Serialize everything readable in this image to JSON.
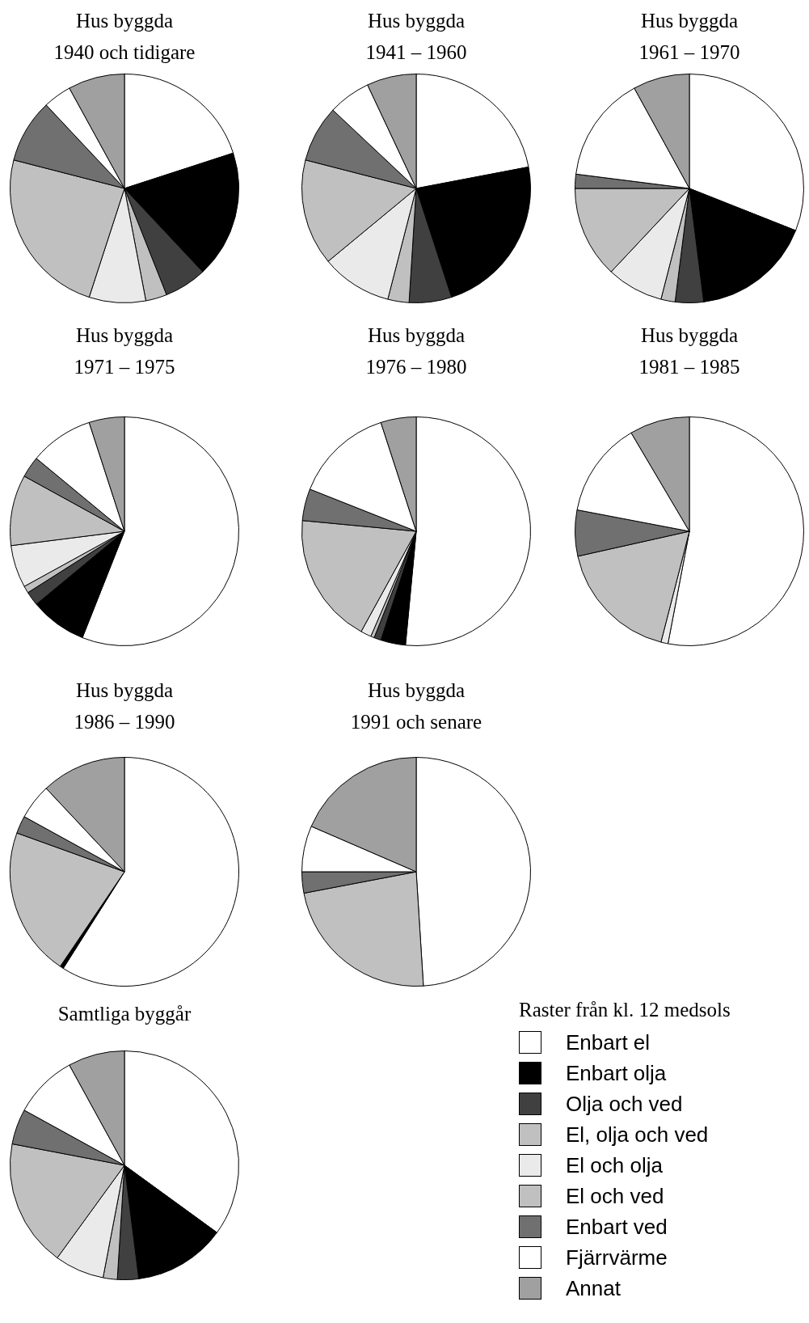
{
  "chart_data": [
    {
      "type": "pie",
      "title": "Hus byggda",
      "subtitle": "1940 och tidigare",
      "categories": [
        null,
        null,
        null,
        null,
        null,
        null,
        null,
        null,
        null
      ],
      "values": [
        20,
        18,
        6,
        3,
        8,
        24,
        9,
        4,
        8
      ],
      "colors": [
        "#ffffff",
        "#000000",
        "#404040",
        "#c0c0c0",
        "#eaeaea",
        "#c0c0c0",
        "#707070",
        "#ffffff",
        "#a0a0a0"
      ],
      "legend": false
    },
    {
      "type": "pie",
      "title": "Hus byggda",
      "subtitle": "1941 – 1960",
      "categories": [
        null,
        null,
        null,
        null,
        null,
        null,
        null,
        null,
        null
      ],
      "values": [
        22,
        23,
        6,
        3,
        10,
        15,
        8,
        6,
        7
      ],
      "colors": [
        "#ffffff",
        "#000000",
        "#404040",
        "#c0c0c0",
        "#eaeaea",
        "#c0c0c0",
        "#707070",
        "#ffffff",
        "#a0a0a0"
      ],
      "legend": false
    },
    {
      "type": "pie",
      "title": "Hus byggda",
      "subtitle": "1961 – 1970",
      "categories": [
        null,
        null,
        null,
        null,
        null,
        null,
        null,
        null,
        null
      ],
      "values": [
        31,
        17,
        4,
        2,
        8,
        13,
        2,
        15,
        8
      ],
      "colors": [
        "#ffffff",
        "#000000",
        "#404040",
        "#c0c0c0",
        "#eaeaea",
        "#c0c0c0",
        "#707070",
        "#ffffff",
        "#a0a0a0"
      ],
      "legend": false
    },
    {
      "type": "pie",
      "title": "Hus byggda",
      "subtitle": "1971 – 1975",
      "categories": [
        null,
        null,
        null,
        null,
        null,
        null,
        null,
        null,
        null
      ],
      "values": [
        56,
        8,
        2,
        1,
        6,
        10,
        3,
        9,
        5
      ],
      "colors": [
        "#ffffff",
        "#000000",
        "#404040",
        "#c0c0c0",
        "#eaeaea",
        "#c0c0c0",
        "#707070",
        "#ffffff",
        "#a0a0a0"
      ],
      "legend": false
    },
    {
      "type": "pie",
      "title": "Hus byggda",
      "subtitle": "1976 – 1980",
      "categories": [
        null,
        null,
        null,
        null,
        null,
        null,
        null,
        null,
        null
      ],
      "values": [
        51.5,
        3.5,
        1,
        0.5,
        1.5,
        18.5,
        4.5,
        14,
        5
      ],
      "colors": [
        "#ffffff",
        "#000000",
        "#404040",
        "#c0c0c0",
        "#eaeaea",
        "#c0c0c0",
        "#707070",
        "#ffffff",
        "#a0a0a0"
      ],
      "legend": false
    },
    {
      "type": "pie",
      "title": "Hus byggda",
      "subtitle": "1981 – 1985",
      "categories": [
        null,
        null,
        null,
        null,
        null,
        null,
        null,
        null,
        null
      ],
      "values": [
        53,
        0,
        0,
        0,
        1,
        17.5,
        6.5,
        13.5,
        8.5
      ],
      "colors": [
        "#ffffff",
        "#000000",
        "#404040",
        "#c0c0c0",
        "#eaeaea",
        "#c0c0c0",
        "#707070",
        "#ffffff",
        "#a0a0a0"
      ],
      "legend": false
    },
    {
      "type": "pie",
      "title": "Hus byggda",
      "subtitle": "1986 – 1990",
      "categories": [
        null,
        null,
        null,
        null,
        null,
        null,
        null,
        null,
        null
      ],
      "values": [
        59,
        0.5,
        0,
        0,
        0,
        21,
        2.5,
        5,
        12
      ],
      "colors": [
        "#ffffff",
        "#000000",
        "#404040",
        "#c0c0c0",
        "#eaeaea",
        "#c0c0c0",
        "#707070",
        "#ffffff",
        "#a0a0a0"
      ],
      "legend": false
    },
    {
      "type": "pie",
      "title": "Hus byggda",
      "subtitle": "1991 och senare",
      "categories": [
        null,
        null,
        null,
        null,
        null,
        null,
        null,
        null,
        null
      ],
      "values": [
        49,
        0,
        0,
        0,
        0,
        23,
        3,
        6.5,
        18.5
      ],
      "colors": [
        "#ffffff",
        "#000000",
        "#404040",
        "#c0c0c0",
        "#eaeaea",
        "#c0c0c0",
        "#707070",
        "#ffffff",
        "#a0a0a0"
      ],
      "legend": false
    },
    {
      "type": "pie",
      "title": "Samtliga byggår",
      "categories": [
        "Enbart el",
        "Enbart olja",
        "Olja och ved",
        "El, olja och ved",
        "El och olja",
        "El och ved",
        "Enbart ved",
        "Fjärrvärme",
        "Annat"
      ],
      "values": [
        35,
        13,
        3,
        2,
        7,
        18,
        5,
        9,
        8
      ],
      "colors": [
        "#ffffff",
        "#000000",
        "#404040",
        "#c0c0c0",
        "#eaeaea",
        "#c0c0c0",
        "#707070",
        "#ffffff",
        "#a0a0a0"
      ],
      "legend": "bottom right",
      "legend_title": "Raster från kl. 12 medsols"
    }
  ]
}
